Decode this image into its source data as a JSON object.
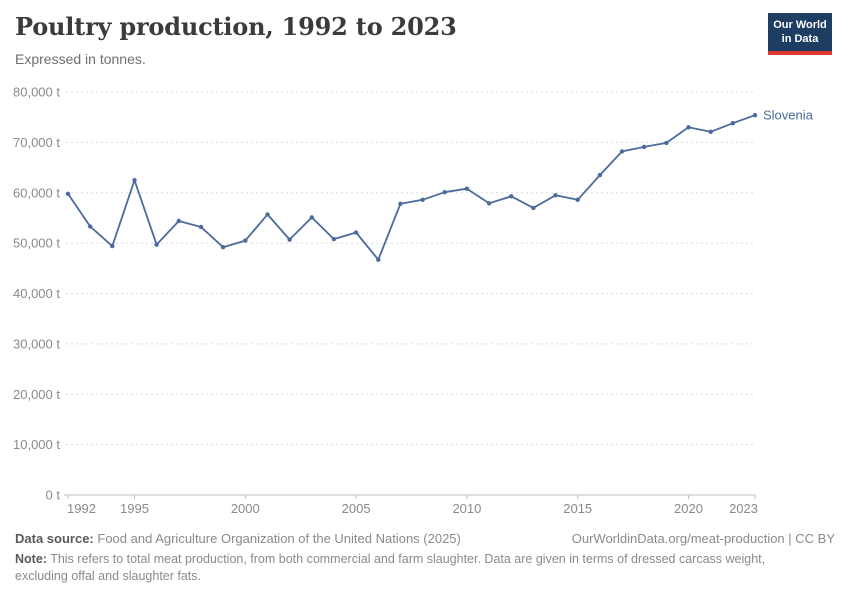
{
  "header": {
    "title": "Poultry production, 1992 to 2023",
    "subtitle": "Expressed in tonnes."
  },
  "logo": {
    "line1": "Our World",
    "line2": "in Data",
    "bg_color": "#1d3d63",
    "accent_color": "#dc3a2e"
  },
  "chart_data": {
    "type": "line",
    "title": "Poultry production, 1992 to 2023",
    "unit": "tonnes",
    "grid": "horizontal-dashed",
    "legend_position": "end-of-line-label",
    "xlim": [
      1992,
      2023
    ],
    "ylim": [
      0,
      80000
    ],
    "xticks": [
      {
        "year": 1992,
        "label": "1992"
      },
      {
        "year": 1995,
        "label": "1995"
      },
      {
        "year": 2000,
        "label": "2000"
      },
      {
        "year": 2005,
        "label": "2005"
      },
      {
        "year": 2010,
        "label": "2010"
      },
      {
        "year": 2015,
        "label": "2015"
      },
      {
        "year": 2020,
        "label": "2020"
      },
      {
        "year": 2023,
        "label": "2023"
      }
    ],
    "yticks": [
      {
        "value": 0,
        "label": "0 t"
      },
      {
        "value": 10000,
        "label": "10,000 t"
      },
      {
        "value": 20000,
        "label": "20,000 t"
      },
      {
        "value": 30000,
        "label": "30,000 t"
      },
      {
        "value": 40000,
        "label": "40,000 t"
      },
      {
        "value": 50000,
        "label": "50,000 t"
      },
      {
        "value": 60000,
        "label": "60,000 t"
      },
      {
        "value": 70000,
        "label": "70,000 t"
      },
      {
        "value": 80000,
        "label": "80,000 t"
      }
    ],
    "series": [
      {
        "name": "Slovenia",
        "color": "#4c6a9c",
        "x": [
          1992,
          1993,
          1994,
          1995,
          1996,
          1997,
          1998,
          1999,
          2000,
          2001,
          2002,
          2003,
          2004,
          2005,
          2006,
          2007,
          2008,
          2009,
          2010,
          2011,
          2012,
          2013,
          2014,
          2015,
          2016,
          2017,
          2018,
          2019,
          2020,
          2021,
          2022,
          2023
        ],
        "values": [
          59800,
          53300,
          49400,
          62500,
          49700,
          54400,
          53200,
          49200,
          50500,
          55700,
          50700,
          55100,
          50800,
          52100,
          46700,
          57800,
          58600,
          60100,
          60800,
          57900,
          59300,
          57000,
          59500,
          58600,
          63500,
          68200,
          69100,
          69900,
          73000,
          72100,
          73800,
          75400
        ]
      }
    ]
  },
  "footer": {
    "datasource_label": "Data source:",
    "datasource": "Food and Agriculture Organization of the United Nations (2025)",
    "link": "OurWorldinData.org/meat-production | CC BY",
    "note_label": "Note:",
    "note": "This refers to total meat production, from both commercial and farm slaughter. Data are given in terms of dressed carcass weight, excluding offal and slaughter fats."
  }
}
